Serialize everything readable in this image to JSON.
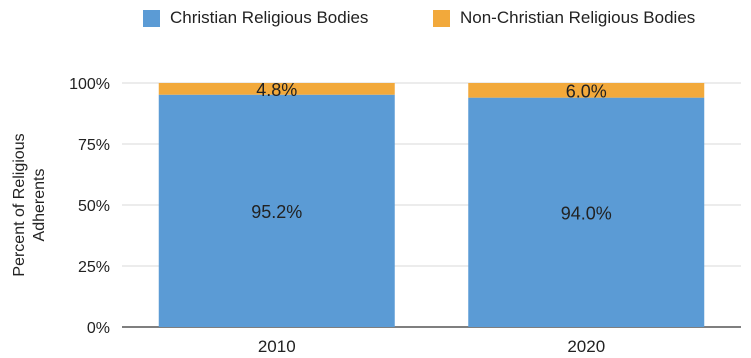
{
  "chart_data": {
    "type": "bar",
    "stacked": true,
    "categories": [
      "2010",
      "2020"
    ],
    "series": [
      {
        "name": "Christian Religious Bodies",
        "values": [
          95.2,
          94.0
        ],
        "labels": [
          "95.2%",
          "94.0%"
        ],
        "color": "#5B9BD5"
      },
      {
        "name": "Non-Christian Religious Bodies",
        "values": [
          4.8,
          6.0
        ],
        "labels": [
          "4.8%",
          "6.0%"
        ],
        "color": "#F2A93B"
      }
    ],
    "ylabel": "Percent of Religious Adherents",
    "ylabel_lines": [
      "Percent of Religious",
      "Adherents"
    ],
    "xlabel": "",
    "ylim": [
      0,
      100
    ],
    "yticks": [
      0,
      25,
      50,
      75,
      100
    ],
    "ytick_labels": [
      "0%",
      "25%",
      "50%",
      "75%",
      "100%"
    ],
    "grid": true,
    "legend_position": "top"
  }
}
